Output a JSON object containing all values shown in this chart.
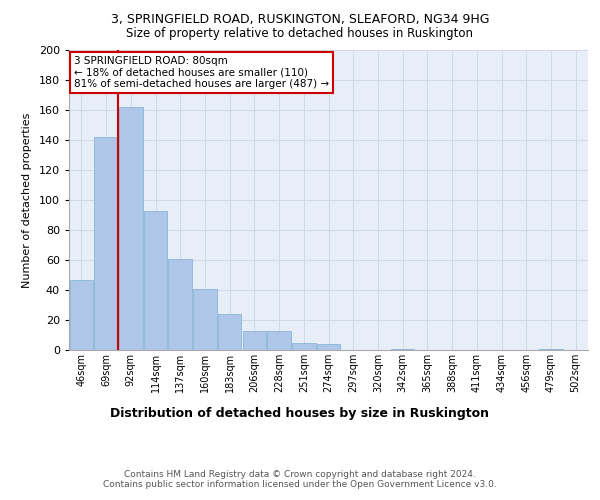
{
  "title1": "3, SPRINGFIELD ROAD, RUSKINGTON, SLEAFORD, NG34 9HG",
  "title2": "Size of property relative to detached houses in Ruskington",
  "xlabel": "Distribution of detached houses by size in Ruskington",
  "ylabel": "Number of detached properties",
  "footnote": "Contains HM Land Registry data © Crown copyright and database right 2024.\nContains public sector information licensed under the Open Government Licence v3.0.",
  "categories": [
    "46sqm",
    "69sqm",
    "92sqm",
    "114sqm",
    "137sqm",
    "160sqm",
    "183sqm",
    "206sqm",
    "228sqm",
    "251sqm",
    "274sqm",
    "297sqm",
    "320sqm",
    "342sqm",
    "365sqm",
    "388sqm",
    "411sqm",
    "434sqm",
    "456sqm",
    "479sqm",
    "502sqm"
  ],
  "values": [
    47,
    142,
    162,
    93,
    61,
    41,
    24,
    13,
    13,
    5,
    4,
    0,
    0,
    1,
    0,
    0,
    0,
    0,
    0,
    1,
    0
  ],
  "bar_color": "#aec6e8",
  "bar_edge_color": "#7aaed4",
  "property_line_color": "#cc0000",
  "annotation_text": "3 SPRINGFIELD ROAD: 80sqm\n← 18% of detached houses are smaller (110)\n81% of semi-detached houses are larger (487) →",
  "annotation_box_color": "#ffffff",
  "annotation_box_edge_color": "#cc0000",
  "ylim": [
    0,
    200
  ],
  "yticks": [
    0,
    20,
    40,
    60,
    80,
    100,
    120,
    140,
    160,
    180,
    200
  ],
  "grid_color": "#d0d8e8",
  "bg_color": "#e8eef8",
  "fig_bg_color": "#ffffff"
}
